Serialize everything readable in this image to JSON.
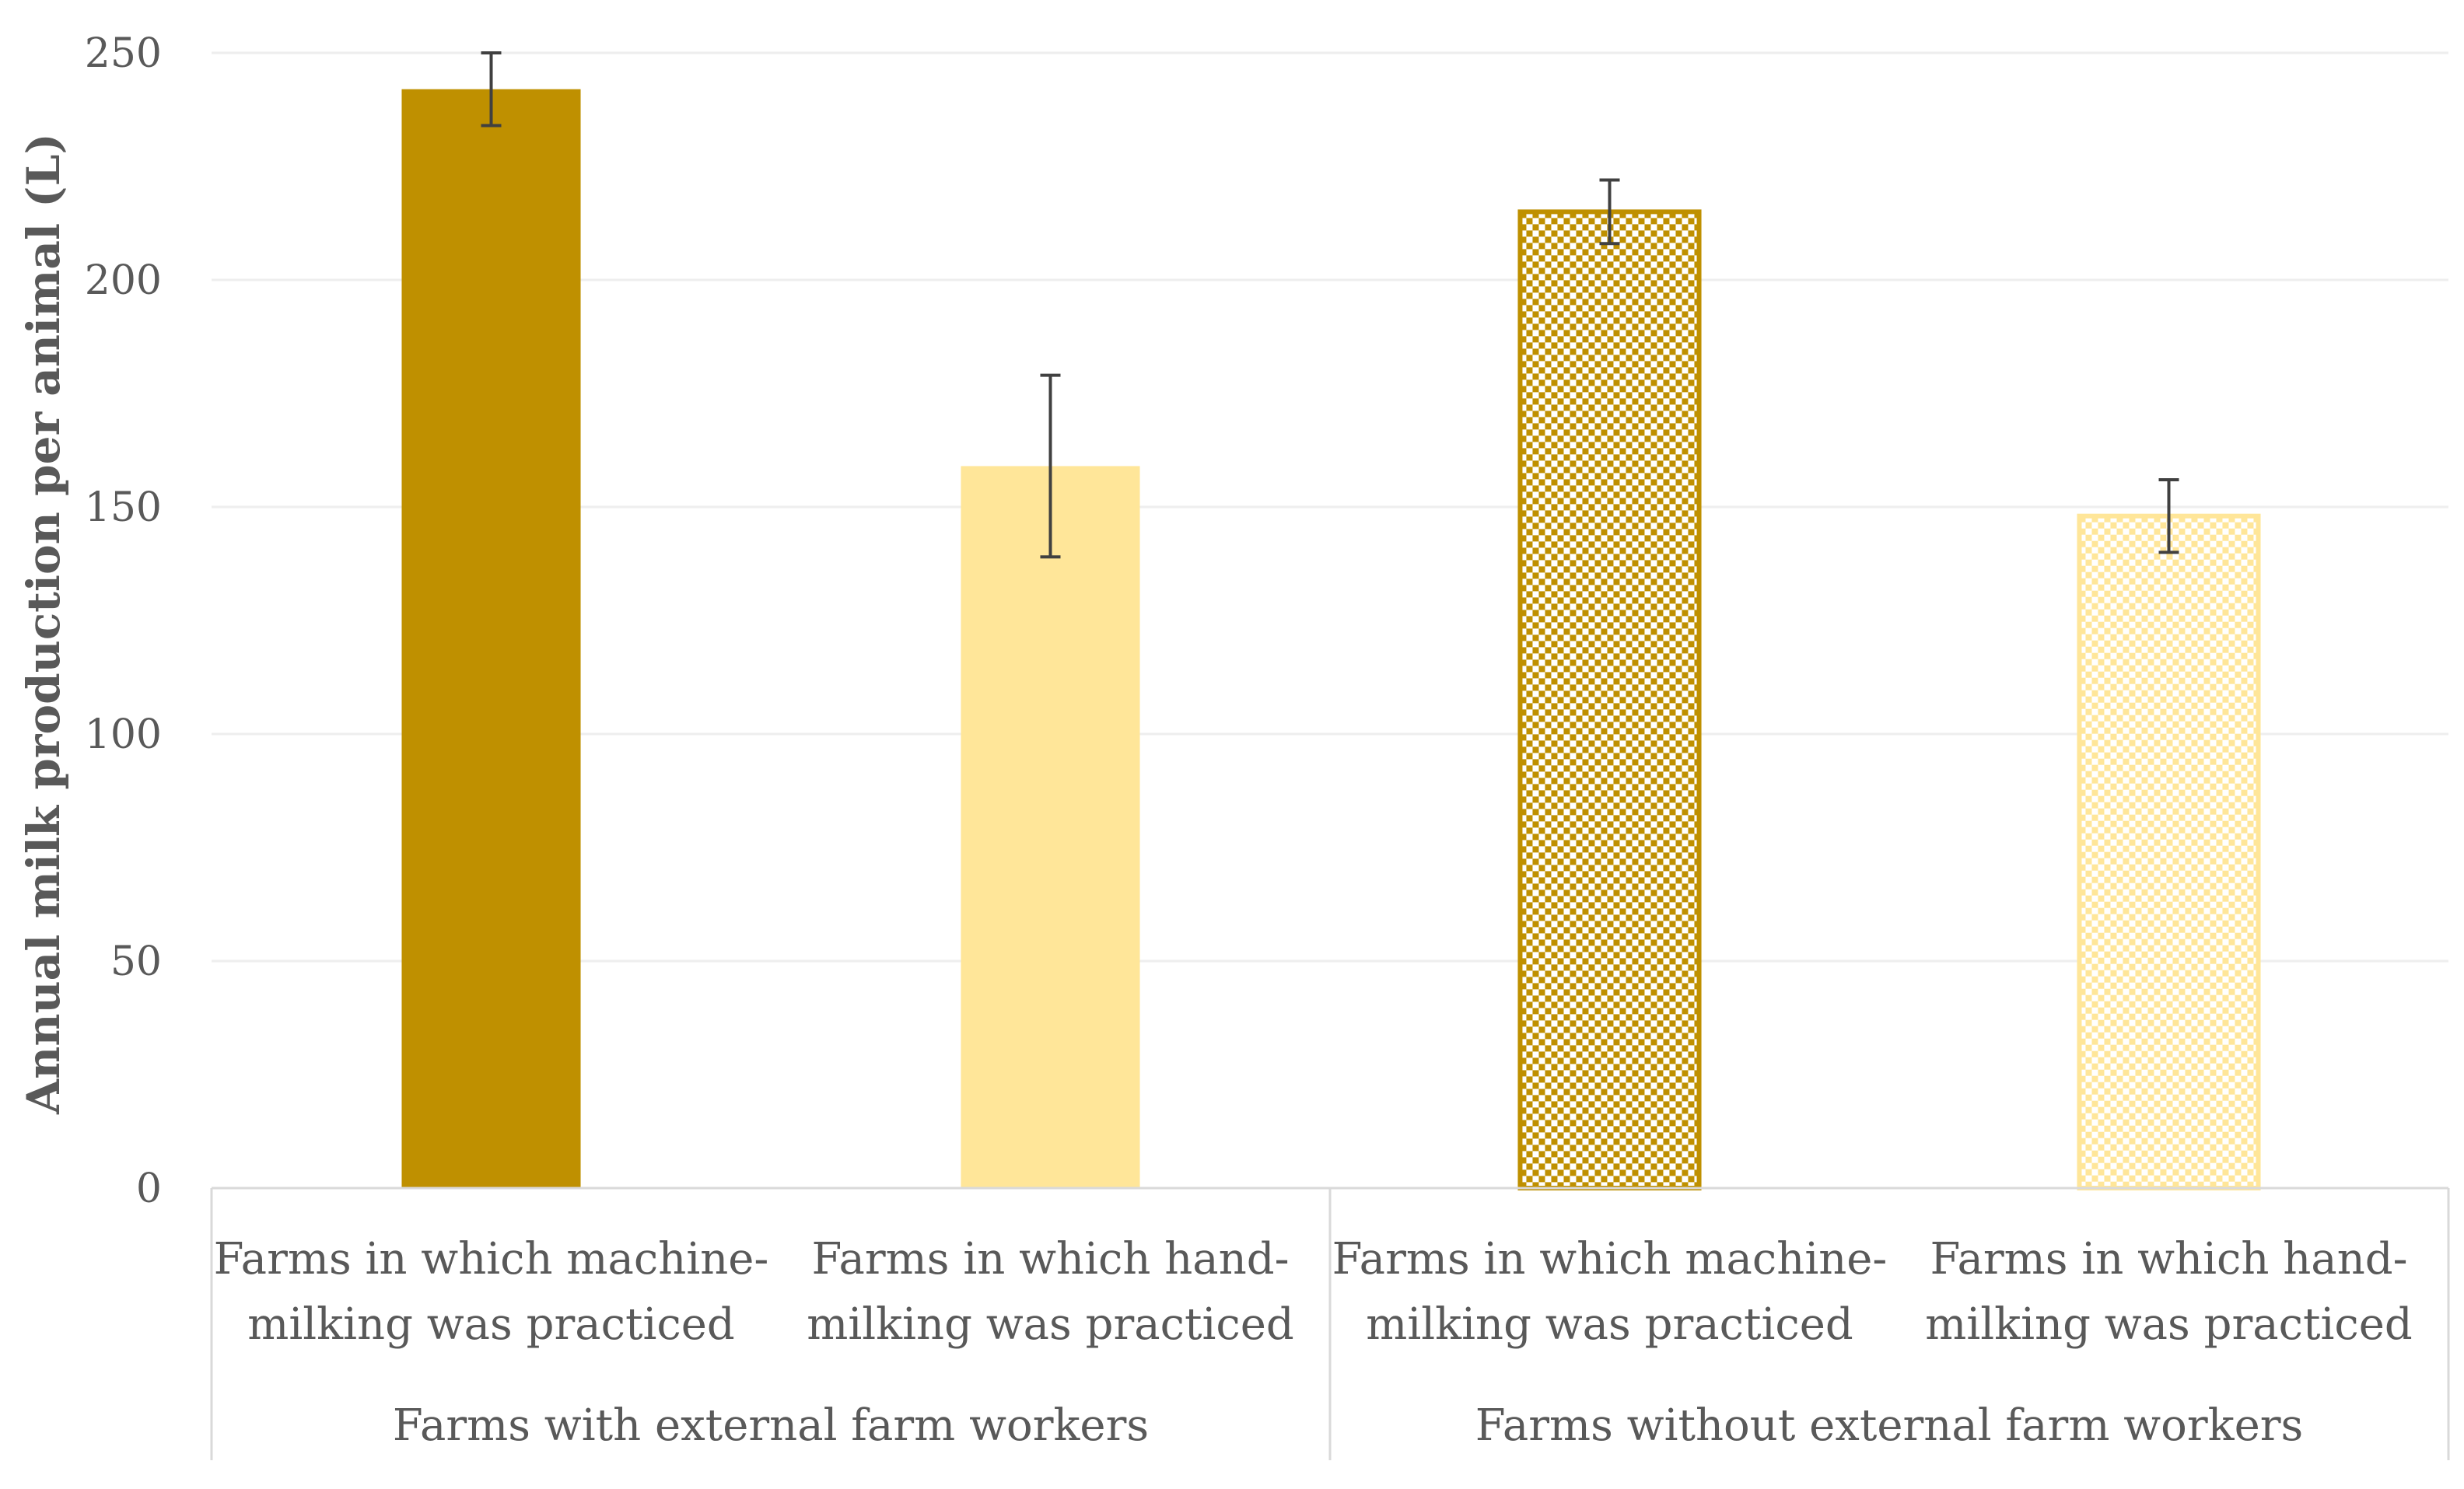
{
  "chart_data": {
    "type": "bar",
    "ylabel": "Annual milk production per animal (L)",
    "xlabel": "",
    "ylim": [
      0,
      250
    ],
    "yticks": [
      0,
      50,
      100,
      150,
      200,
      250
    ],
    "grid": "horizontal",
    "groups": [
      {
        "label": "Farms with external farm workers",
        "bars": [
          {
            "label_lines": [
              "Farms in which machine-",
              "milking was practiced"
            ],
            "value": 242,
            "error_low": 234,
            "error_high": 250,
            "color": "#bf9000",
            "fill": "solid"
          },
          {
            "label_lines": [
              "Farms in which hand-",
              "milking was practiced"
            ],
            "value": 159,
            "error_low": 139,
            "error_high": 179,
            "color": "#ffe699",
            "fill": "solid"
          }
        ]
      },
      {
        "label": "Farms without external farm workers",
        "bars": [
          {
            "label_lines": [
              "Farms in which machine-",
              "milking was practiced"
            ],
            "value": 215,
            "error_low": 208,
            "error_high": 222,
            "color": "#bf9000",
            "fill": "checkerboard"
          },
          {
            "label_lines": [
              "Farms in which hand-",
              "milking was practiced"
            ],
            "value": 148,
            "error_low": 140,
            "error_high": 156,
            "color": "#ffe699",
            "fill": "checkerboard"
          }
        ]
      }
    ],
    "colors": {
      "axis": "#d9d9d9",
      "grid": "#eeeeee",
      "text": "#595959",
      "error_bar": "#404040",
      "checker_light": "#ffffff"
    }
  }
}
